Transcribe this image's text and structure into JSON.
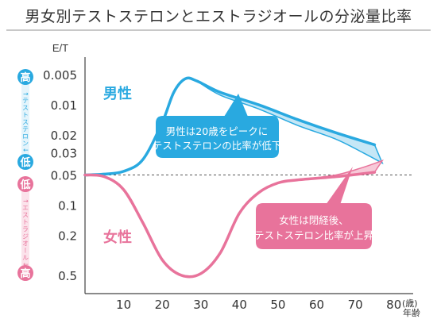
{
  "title": "男女別テストステロンとエストラジオールの分泌量比率",
  "colors": {
    "male": "#29a9e0",
    "male_fill": "#c5e7f6",
    "female": "#e8739b",
    "female_fill": "#f7c9d8",
    "grid": "#555555",
    "text": "#333333"
  },
  "chart_data": {
    "type": "line",
    "title": "男女別テストステロンとエストラジオールの分泌量比率",
    "ylabel": "E/T",
    "xlabel": "(歳)年齢",
    "x_unit": "(歳)",
    "x_unit2": "年齢",
    "x_ticks": [
      10,
      20,
      30,
      40,
      50,
      60,
      70,
      80
    ],
    "x_range": [
      0,
      85
    ],
    "y_ticks": [
      "0.005",
      "0.01",
      "0.02",
      "0.03",
      "0.05",
      "0.1",
      "0.2",
      "0.5"
    ],
    "y_ticks_values": [
      0.005,
      0.01,
      0.02,
      0.03,
      0.05,
      0.1,
      0.2,
      0.5
    ],
    "y_scale": "log, inverted (0.005 at top)",
    "baseline": 0.05,
    "series": [
      {
        "name": "男性",
        "color": "#29a9e0",
        "x": [
          0,
          5,
          10,
          15,
          20,
          23,
          26,
          29,
          35,
          45,
          55,
          65,
          75
        ],
        "y": [
          0.05,
          0.049,
          0.046,
          0.035,
          0.015,
          0.0075,
          0.0055,
          0.0058,
          0.0075,
          0.01,
          0.014,
          0.019,
          0.025
        ],
        "band_lower_y": [
          0.0058,
          0.008,
          0.011,
          0.016,
          0.022,
          0.03,
          0.038
        ],
        "band_x": [
          29,
          35,
          45,
          55,
          65,
          72,
          77
        ]
      },
      {
        "name": "女性",
        "color": "#e8739b",
        "x": [
          0,
          5,
          10,
          15,
          20,
          25,
          30,
          35,
          40,
          45,
          50,
          55,
          65,
          75
        ],
        "y": [
          0.05,
          0.052,
          0.07,
          0.15,
          0.35,
          0.5,
          0.48,
          0.3,
          0.12,
          0.075,
          0.06,
          0.056,
          0.052,
          0.047
        ],
        "band_upper_y": [
          0.056,
          0.05,
          0.042,
          0.036
        ],
        "band_x": [
          55,
          65,
          72,
          77
        ]
      }
    ],
    "annotations": [
      "男性は20歳をピークに",
      "テストステロンの比率が低下",
      "女性は閉経後、",
      "テストステロン比率が上昇"
    ]
  },
  "left_scale": {
    "male_top": "高",
    "male_arrow": "↑テストステロン↓",
    "male_bottom": "低",
    "female_top": "低",
    "female_arrow": "↑エストラジオール↓",
    "female_bottom": "高"
  },
  "sex_labels": {
    "male": "男性",
    "female": "女性"
  },
  "callouts": {
    "male": [
      "男性は20歳をピークに",
      "テストステロンの比率が低下"
    ],
    "female": [
      "女性は閉経後、",
      "テストステロン比率が上昇"
    ]
  }
}
